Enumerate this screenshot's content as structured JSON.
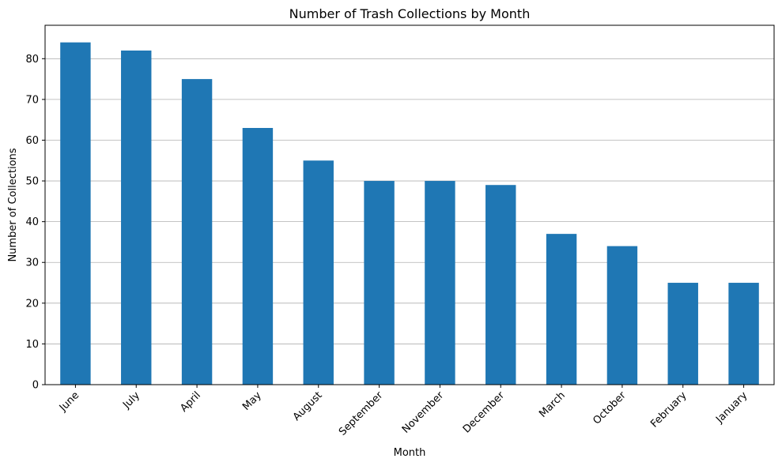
{
  "chart_data": {
    "type": "bar",
    "title": "Number of Trash Collections by Month",
    "xlabel": "Month",
    "ylabel": "Number of Collections",
    "categories": [
      "June",
      "July",
      "April",
      "May",
      "August",
      "September",
      "November",
      "December",
      "March",
      "October",
      "February",
      "January"
    ],
    "values": [
      84,
      82,
      75,
      63,
      55,
      50,
      50,
      49,
      37,
      34,
      25,
      25
    ],
    "ylim": [
      0,
      88.2
    ],
    "yticks": [
      0,
      10,
      20,
      30,
      40,
      50,
      60,
      70,
      80
    ],
    "grid": "y",
    "bar_color": "#1f77b4",
    "xtick_rotation": 45
  }
}
